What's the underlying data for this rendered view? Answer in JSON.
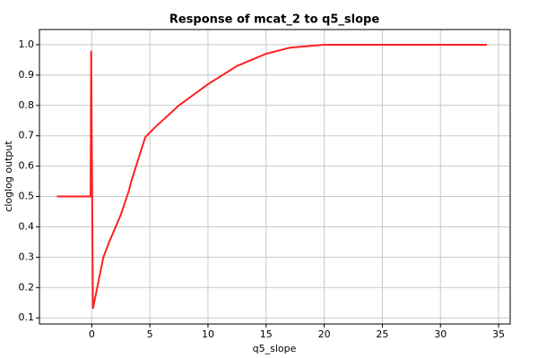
{
  "chart_data": {
    "type": "line",
    "title": "Response of mcat_2 to q5_slope",
    "xlabel": "q5_slope",
    "ylabel": "cloglog output",
    "x": [
      -3,
      -0.1,
      -0.05,
      0.1,
      1,
      1.5,
      2.5,
      3.2,
      3.4,
      4.6,
      5.5,
      7.5,
      10,
      12.5,
      15,
      17,
      19.4,
      20,
      34
    ],
    "series": [
      {
        "color": "#ff2020",
        "values": [
          0.5,
          0.5,
          0.98,
          0.13,
          0.3,
          0.35,
          0.44,
          0.52,
          0.55,
          0.695,
          0.73,
          0.8,
          0.87,
          0.93,
          0.97,
          0.99,
          0.998,
          1.0,
          1.0
        ]
      }
    ],
    "xlim": [
      -4.5,
      36
    ],
    "ylim": [
      0.08,
      1.05
    ],
    "xticks": [
      0,
      5,
      10,
      15,
      20,
      25,
      30,
      35
    ],
    "yticks": [
      0.1,
      0.2,
      0.3,
      0.4,
      0.5,
      0.6,
      0.7,
      0.8,
      0.9,
      {
        "value": 1,
        "label": "1.0"
      }
    ],
    "grid": true
  }
}
